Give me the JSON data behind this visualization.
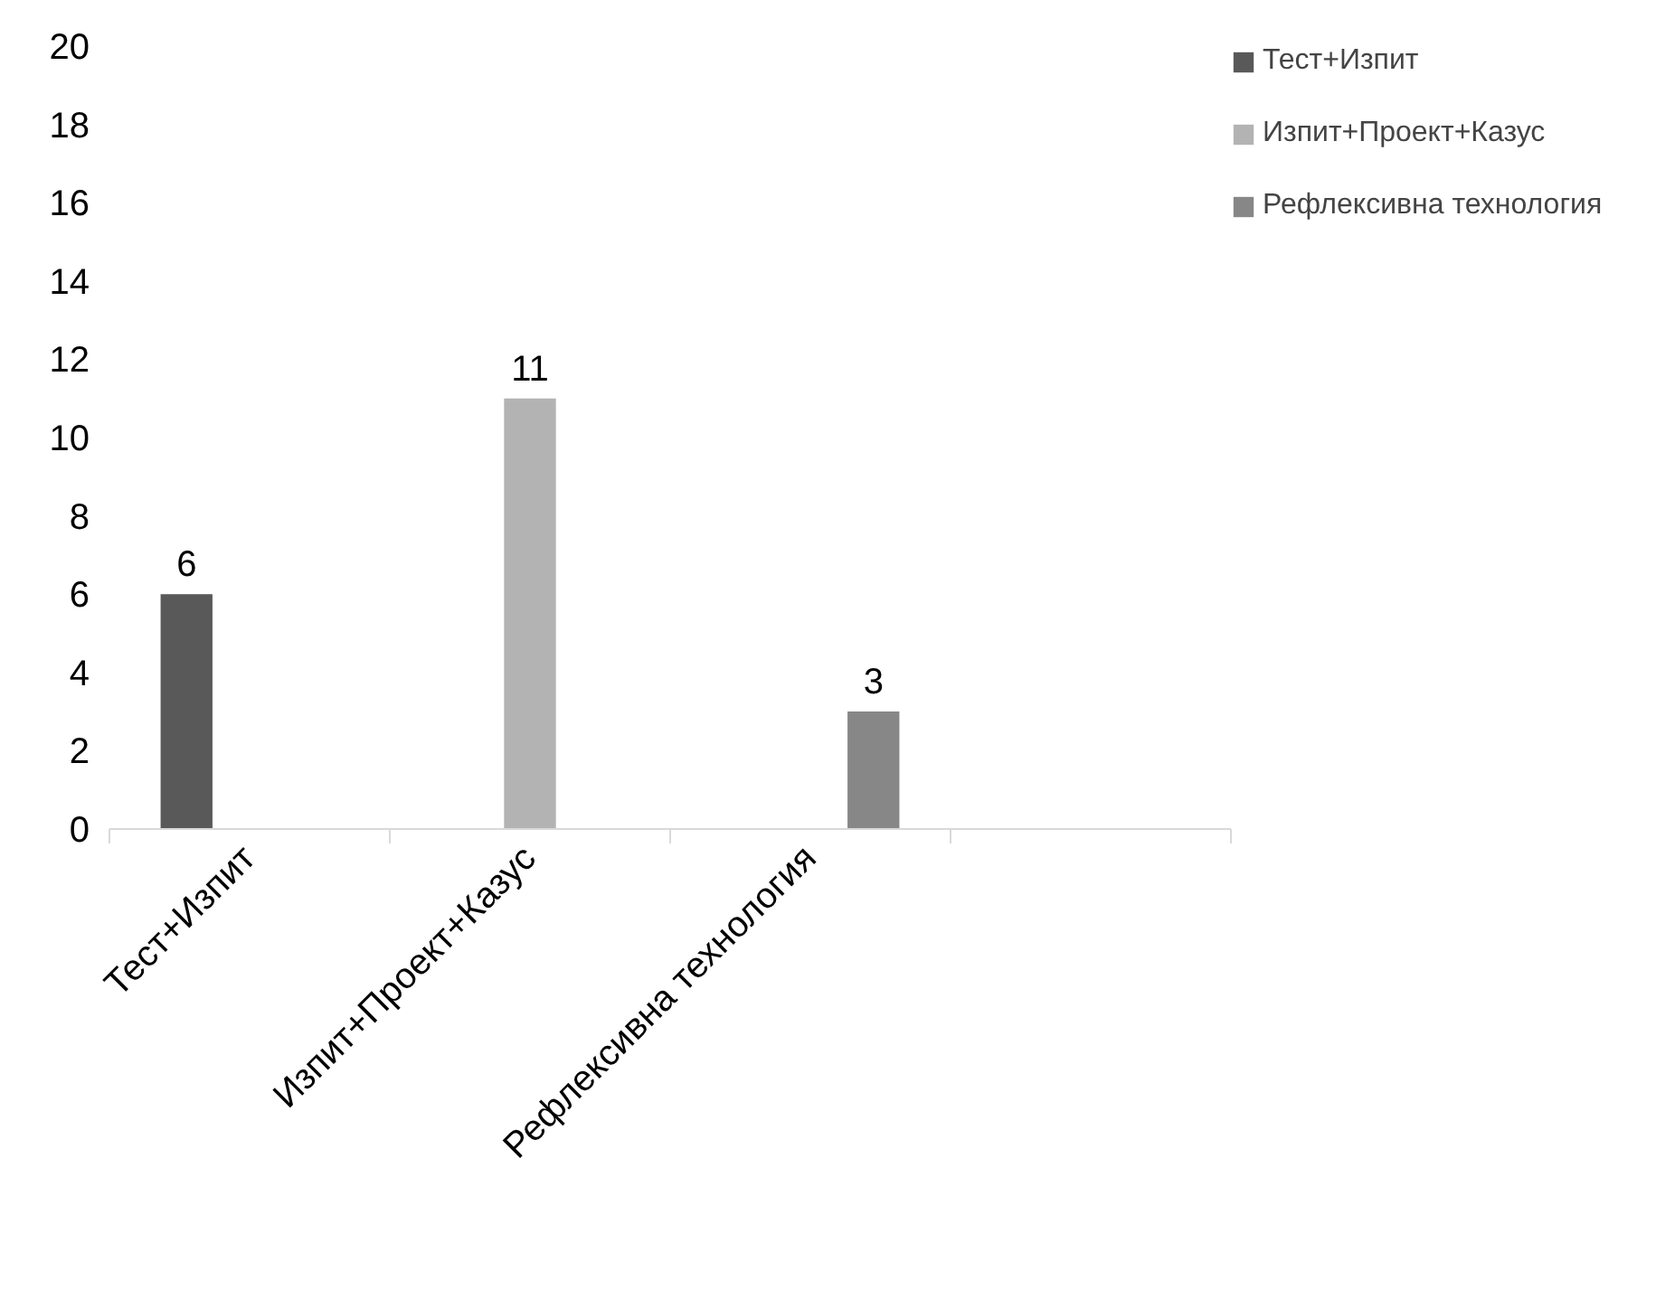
{
  "chart_data": {
    "type": "bar",
    "categories": [
      "Тест+Изпит",
      "Изпит+Проект+Казус",
      "Рефлексивна технология",
      null
    ],
    "series": [
      {
        "name": "Тест+Изпит",
        "color": "#595959",
        "values": [
          6,
          null,
          null,
          null
        ]
      },
      {
        "name": "Изпит+Проект+Казус",
        "color": "#b3b3b3",
        "values": [
          null,
          11,
          null,
          null
        ]
      },
      {
        "name": "Рефлексивна технология",
        "color": "#878787",
        "values": [
          null,
          null,
          3,
          null
        ]
      }
    ],
    "ylim": [
      0,
      20
    ],
    "yticks": [
      0,
      2,
      4,
      6,
      8,
      10,
      12,
      14,
      16,
      18,
      20
    ],
    "data_labels": true,
    "legend": "right",
    "grid": false
  }
}
